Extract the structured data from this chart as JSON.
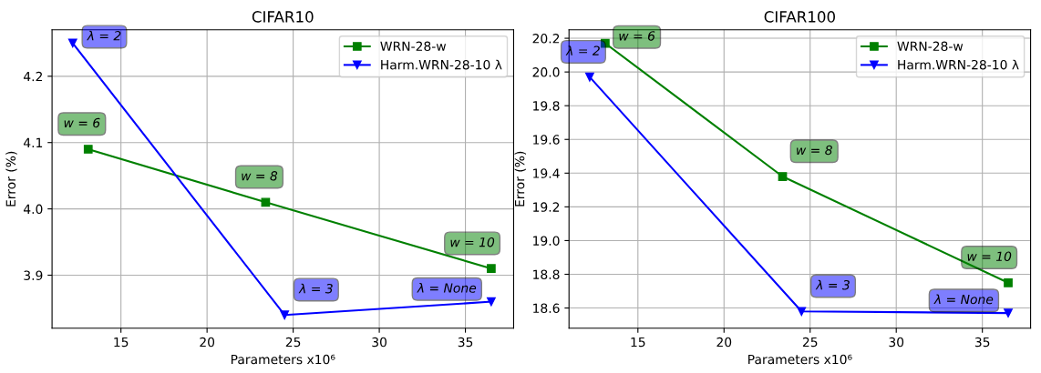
{
  "chart_data": [
    {
      "type": "line",
      "title": "CIFAR10",
      "xlabel": "Parameters x10⁶",
      "ylabel": "Error (%)",
      "xlim": [
        11,
        37.8
      ],
      "xticks": [
        15,
        20,
        25,
        30,
        35
      ],
      "ylim": [
        3.82,
        4.27
      ],
      "yticks": [
        3.9,
        {
          "value": 4,
          "label": "4.0"
        },
        4.1,
        4.2
      ],
      "grid": true,
      "legend": "top right",
      "series": [
        {
          "name": "WRN-28-w",
          "color": "#008000",
          "marker": "square",
          "x": [
            13.1,
            23.4,
            36.5
          ],
          "values": [
            4.09,
            4.01,
            3.91
          ]
        },
        {
          "name": "Harm.WRN-28-10 λ",
          "color": "#0000ff",
          "marker": "triangle",
          "x": [
            12.2,
            24.5,
            36.5
          ],
          "values": [
            4.25,
            3.84,
            3.86
          ]
        }
      ],
      "annotations": [
        {
          "text": "w = 6",
          "x": 13.1,
          "y": 4.09
        },
        {
          "text": "w = 8",
          "x": 23.4,
          "y": 4.01
        },
        {
          "text": "w = 10",
          "x": 36.5,
          "y": 3.91
        },
        {
          "text": "λ = 2",
          "x": 12.2,
          "y": 4.25
        },
        {
          "text": "λ = 3",
          "x": 24.5,
          "y": 3.84
        },
        {
          "text": "λ = None",
          "x": 36.5,
          "y": 3.86
        }
      ]
    },
    {
      "type": "line",
      "title": "CIFAR100",
      "xlabel": "Parameters x10⁶",
      "ylabel": "Error (%)",
      "xlim": [
        11,
        37.8
      ],
      "xticks": [
        15,
        20,
        25,
        30,
        35
      ],
      "ylim": [
        18.48,
        20.25
      ],
      "yticks": [
        18.6,
        18.8,
        {
          "value": 19,
          "label": "19.0"
        },
        19.2,
        19.4,
        19.6,
        19.8,
        {
          "value": 20,
          "label": "20.0"
        },
        20.2
      ],
      "grid": true,
      "legend": "top right",
      "series": [
        {
          "name": "WRN-28-w",
          "color": "#008000",
          "marker": "square",
          "x": [
            13.1,
            23.4,
            36.5
          ],
          "values": [
            20.17,
            19.38,
            18.75
          ]
        },
        {
          "name": "Harm.WRN-28-10 λ",
          "color": "#0000ff",
          "marker": "triangle",
          "x": [
            12.2,
            24.5,
            36.5
          ],
          "values": [
            19.97,
            18.58,
            18.57
          ]
        }
      ],
      "annotations": [
        {
          "text": "w = 6",
          "x": 13.1,
          "y": 20.17
        },
        {
          "text": "w = 8",
          "x": 23.4,
          "y": 19.38
        },
        {
          "text": "w = 10",
          "x": 36.5,
          "y": 18.75
        },
        {
          "text": "λ = 2",
          "x": 12.2,
          "y": 19.97
        },
        {
          "text": "λ = 3",
          "x": 24.5,
          "y": 18.58
        },
        {
          "text": "λ = None",
          "x": 36.5,
          "y": 18.57
        }
      ]
    }
  ]
}
